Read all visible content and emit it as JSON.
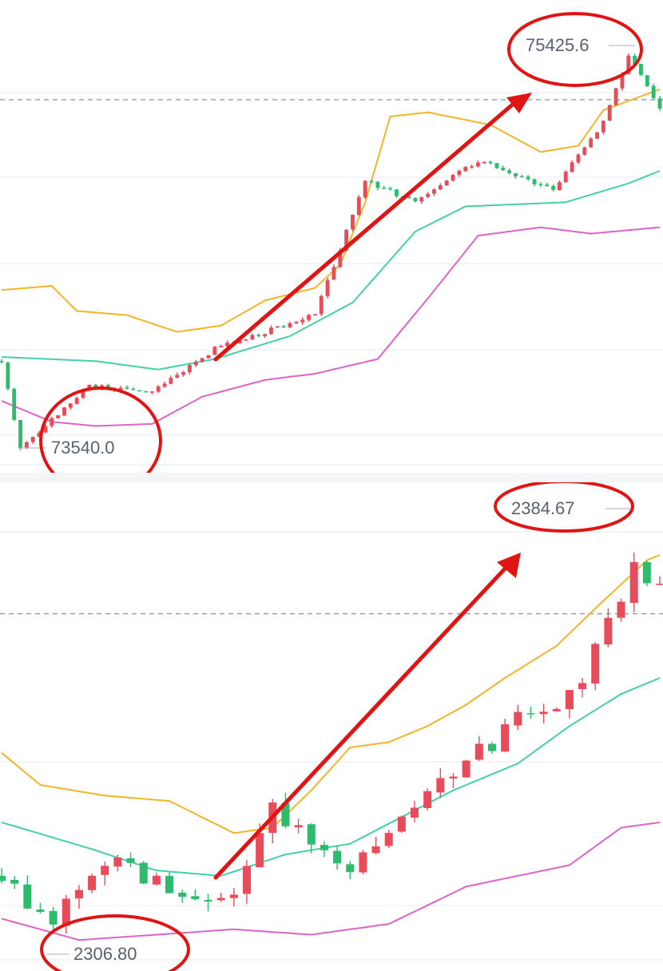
{
  "colors": {
    "up": "#e84c5b",
    "down": "#2dbb6e",
    "ma": "#f2b52a",
    "band_mid": "#45cfa8",
    "band_low": "#dd63c8",
    "annotation": "#e11414",
    "grid": "#eceef2",
    "label_text": "#5a6170"
  },
  "chart_data": [
    {
      "type": "candlestick",
      "symbol_hint": "BTC",
      "ylim": [
        73460,
        75560
      ],
      "grid": true,
      "dashed_reference_line": 75190,
      "labels": {
        "high": "75425.6",
        "low": "73540.0"
      },
      "annotation": {
        "type": "arrow",
        "direction": "up-right",
        "color": "#e11414"
      },
      "series": [
        {
          "role": "candles",
          "n": 106,
          "o": 73950,
          "bias": 8.5,
          "vol": 11,
          "seed": 17,
          "targets": [
            [
              0,
              73940
            ],
            [
              3,
              73530
            ],
            [
              14,
              73820
            ],
            [
              24,
              73790
            ],
            [
              34,
              74000
            ],
            [
              50,
              74160
            ],
            [
              58,
              74800
            ],
            [
              66,
              74700
            ],
            [
              76,
              74900
            ],
            [
              88,
              74760
            ],
            [
              96,
              75080
            ],
            [
              100,
              75400
            ],
            [
              105,
              75150
            ]
          ]
        },
        {
          "role": "ma",
          "style": "line",
          "points": [
            [
              0,
              74280
            ],
            [
              8,
              74300
            ],
            [
              12,
              74180
            ],
            [
              20,
              74160
            ],
            [
              28,
              74080
            ],
            [
              35,
              74110
            ],
            [
              42,
              74230
            ],
            [
              50,
              74290
            ],
            [
              54,
              74400
            ],
            [
              58,
              74700
            ],
            [
              62,
              75110
            ],
            [
              68,
              75130
            ],
            [
              78,
              75070
            ],
            [
              86,
              74940
            ],
            [
              92,
              74970
            ],
            [
              96,
              75140
            ],
            [
              105,
              75240
            ]
          ]
        },
        {
          "role": "band_mid",
          "style": "line",
          "points": [
            [
              0,
              73960
            ],
            [
              15,
              73940
            ],
            [
              25,
              73900
            ],
            [
              34,
              73950
            ],
            [
              46,
              74060
            ],
            [
              56,
              74220
            ],
            [
              66,
              74560
            ],
            [
              74,
              74680
            ],
            [
              82,
              74690
            ],
            [
              90,
              74700
            ],
            [
              100,
              74790
            ],
            [
              105,
              74850
            ]
          ]
        },
        {
          "role": "band_low",
          "style": "line",
          "points": [
            [
              0,
              73750
            ],
            [
              8,
              73650
            ],
            [
              15,
              73630
            ],
            [
              24,
              73640
            ],
            [
              32,
              73770
            ],
            [
              42,
              73850
            ],
            [
              50,
              73880
            ],
            [
              60,
              73950
            ],
            [
              68,
              74240
            ],
            [
              76,
              74540
            ],
            [
              86,
              74580
            ],
            [
              94,
              74550
            ],
            [
              105,
              74580
            ]
          ]
        }
      ]
    },
    {
      "type": "candlestick",
      "symbol_hint": "ETH",
      "ylim": [
        2302,
        2388
      ],
      "grid": true,
      "dashed_reference_line": 2367,
      "labels": {
        "high": "2384.67",
        "low": "2306.80"
      },
      "annotation": {
        "type": "arrow",
        "direction": "up-right",
        "color": "#e11414"
      },
      "series": [
        {
          "role": "candles",
          "n": 52,
          "o": 2318,
          "bias": 0.9,
          "vol": 1.8,
          "seed": 5,
          "targets": [
            [
              0,
              2318
            ],
            [
              4,
              2309
            ],
            [
              8,
              2321
            ],
            [
              15,
              2314
            ],
            [
              18,
              2316
            ],
            [
              21,
              2330
            ],
            [
              27,
              2320
            ],
            [
              34,
              2335
            ],
            [
              40,
              2347
            ],
            [
              44,
              2351
            ],
            [
              49,
              2375
            ],
            [
              51,
              2372
            ]
          ]
        },
        {
          "role": "ma",
          "style": "line",
          "points": [
            [
              0,
              2341
            ],
            [
              3,
              2335
            ],
            [
              8,
              2333
            ],
            [
              13,
              2332
            ],
            [
              18,
              2326
            ],
            [
              21,
              2327
            ],
            [
              24,
              2334
            ],
            [
              27,
              2342
            ],
            [
              30,
              2343
            ],
            [
              33,
              2346
            ],
            [
              36,
              2350
            ],
            [
              39,
              2355
            ],
            [
              43,
              2361
            ],
            [
              46,
              2368
            ],
            [
              50,
              2377
            ],
            [
              51,
              2378
            ]
          ]
        },
        {
          "role": "band_mid",
          "style": "line",
          "points": [
            [
              0,
              2328
            ],
            [
              7,
              2323
            ],
            [
              12,
              2319
            ],
            [
              17,
              2318
            ],
            [
              22,
              2322
            ],
            [
              27,
              2324
            ],
            [
              31,
              2329
            ],
            [
              35,
              2334
            ],
            [
              40,
              2339
            ],
            [
              44,
              2346
            ],
            [
              48,
              2352
            ],
            [
              51,
              2355
            ]
          ]
        },
        {
          "role": "band_low",
          "style": "line",
          "points": [
            [
              0,
              2310
            ],
            [
              6,
              2306
            ],
            [
              12,
              2307
            ],
            [
              18,
              2308
            ],
            [
              24,
              2307
            ],
            [
              30,
              2309
            ],
            [
              36,
              2316
            ],
            [
              40,
              2318
            ],
            [
              44,
              2320
            ],
            [
              48,
              2327
            ],
            [
              51,
              2328
            ]
          ]
        }
      ]
    }
  ]
}
